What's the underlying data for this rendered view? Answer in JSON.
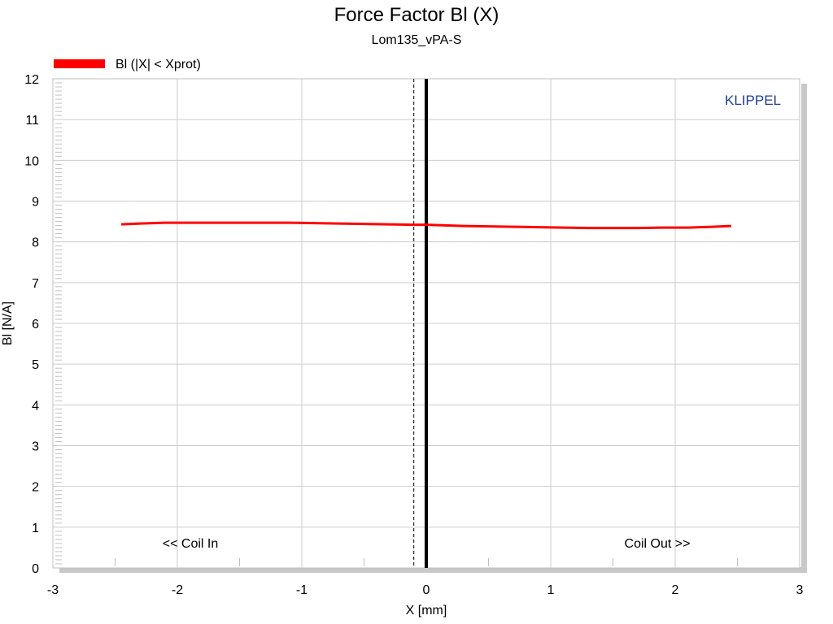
{
  "chart_data": {
    "type": "line",
    "title": "Force Factor Bl (X)",
    "subtitle": "Lom135_vPA-S",
    "xlabel": "X [mm]",
    "ylabel": "Bl [N/A]",
    "xlim": [
      -3,
      3
    ],
    "ylim": [
      0,
      12
    ],
    "x_ticks": [
      "-3",
      "-2",
      "-1",
      "0",
      "1",
      "2",
      "3"
    ],
    "y_ticks": [
      "0",
      "1",
      "2",
      "3",
      "4",
      "5",
      "6",
      "7",
      "8",
      "9",
      "10",
      "11",
      "12"
    ],
    "grid": true,
    "legend_position": "top-left",
    "brand": "KLIPPEL",
    "annotations": {
      "left": "<< Coil In",
      "right": "Coil Out >>"
    },
    "rest_position_x": 0,
    "offset_marker_x": -0.1,
    "series": [
      {
        "name": "Bl (|X| < Xprot)",
        "color": "#ff0000",
        "x": [
          -2.45,
          -2.3,
          -2.1,
          -1.9,
          -1.7,
          -1.5,
          -1.3,
          -1.1,
          -0.9,
          -0.7,
          -0.5,
          -0.3,
          -0.1,
          0.0,
          0.1,
          0.3,
          0.5,
          0.7,
          0.9,
          1.1,
          1.3,
          1.5,
          1.7,
          1.9,
          2.1,
          2.3,
          2.45
        ],
        "values": [
          8.43,
          8.45,
          8.47,
          8.47,
          8.47,
          8.47,
          8.47,
          8.47,
          8.46,
          8.45,
          8.44,
          8.43,
          8.42,
          8.42,
          8.41,
          8.39,
          8.38,
          8.37,
          8.36,
          8.35,
          8.34,
          8.34,
          8.34,
          8.35,
          8.35,
          8.37,
          8.39
        ]
      }
    ]
  },
  "colors": {
    "plot_border": "#c0c0c0",
    "grid": "#cccccc",
    "brand": "#1f3f8f",
    "zero_line": "#000000"
  }
}
